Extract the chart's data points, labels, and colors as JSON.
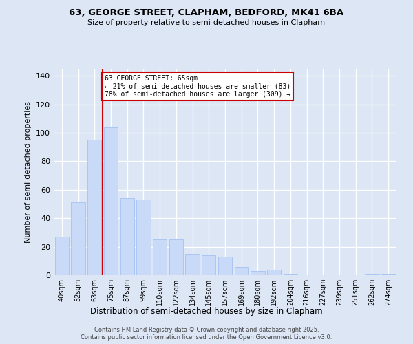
{
  "title1": "63, GEORGE STREET, CLAPHAM, BEDFORD, MK41 6BA",
  "title2": "Size of property relative to semi-detached houses in Clapham",
  "xlabel": "Distribution of semi-detached houses by size in Clapham",
  "ylabel": "Number of semi-detached properties",
  "categories": [
    "40sqm",
    "52sqm",
    "63sqm",
    "75sqm",
    "87sqm",
    "99sqm",
    "110sqm",
    "122sqm",
    "134sqm",
    "145sqm",
    "157sqm",
    "169sqm",
    "180sqm",
    "192sqm",
    "204sqm",
    "216sqm",
    "227sqm",
    "239sqm",
    "251sqm",
    "262sqm",
    "274sqm"
  ],
  "values": [
    27,
    51,
    95,
    104,
    54,
    53,
    25,
    25,
    15,
    14,
    13,
    6,
    3,
    4,
    1,
    0,
    0,
    0,
    0,
    1,
    1
  ],
  "highlight_index": 2,
  "bar_color": "#c9daf8",
  "bar_edge_color": "#a4c2f4",
  "highlight_line_color": "#cc0000",
  "annotation_box_color": "#cc0000",
  "annotation_text": "63 GEORGE STREET: 65sqm\n← 21% of semi-detached houses are smaller (83)\n78% of semi-detached houses are larger (309) →",
  "footer1": "Contains HM Land Registry data © Crown copyright and database right 2025.",
  "footer2": "Contains public sector information licensed under the Open Government Licence v3.0.",
  "ylim": [
    0,
    145
  ],
  "yticks": [
    0,
    20,
    40,
    60,
    80,
    100,
    120,
    140
  ],
  "background_color": "#dce6f5",
  "plot_background_color": "#dce6f5",
  "grid_color": "#ffffff"
}
